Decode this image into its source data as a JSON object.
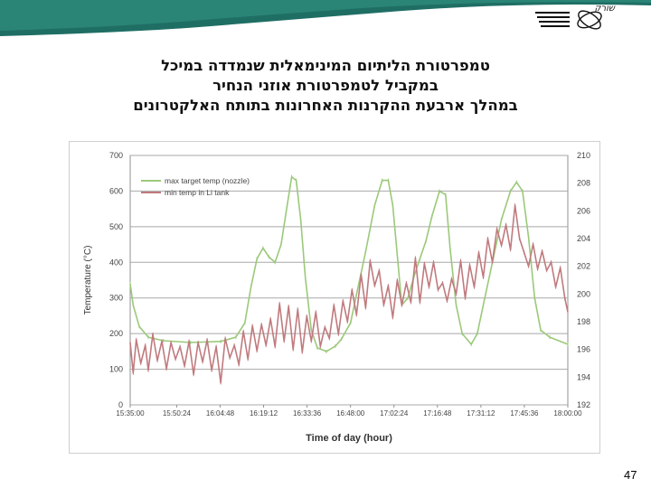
{
  "header": {
    "logo_text": "שורק",
    "title_lines": [
      "טמפרטורת הליתיום המינימאלית שנמדדה במיכל",
      "במקביל לטמפרטורת אוזני הנחיר",
      "במהלך ארבעת ההקרנות האחרונות בתותח האלקטרונים"
    ]
  },
  "colors": {
    "teal_band": "#1f6e64",
    "green_series": "#9bc97a",
    "red_series": "#c07a7e",
    "grid": "#a8a8a8"
  },
  "footer": {
    "page_number": "47"
  },
  "chart_data": {
    "type": "line",
    "xlabel": "Time of day (hour)",
    "ylabel": "Temperature (°C)",
    "x_tick_labels": [
      "15:35:00",
      "15:50:24",
      "16:04:48",
      "16:19:12",
      "16:33:36",
      "16:48:00",
      "17:02:24",
      "17:16:48",
      "17:31:12",
      "17:45:36",
      "18:00:00"
    ],
    "xlim": [
      "15:35:00",
      "18:00:00"
    ],
    "ylim_left": [
      0,
      700
    ],
    "ylim_right": [
      192,
      210
    ],
    "left_ticks": [
      0,
      100,
      200,
      300,
      400,
      500,
      600,
      700
    ],
    "right_ticks": [
      192,
      194,
      196,
      198,
      200,
      202,
      204,
      206,
      208,
      210
    ],
    "grid": "horizontal",
    "legend_position": "top-left",
    "series": [
      {
        "name": "max target temp (nozzle)",
        "axis": "left",
        "color": "#9bc97a",
        "points": [
          [
            "15:35:00",
            340
          ],
          [
            "15:36:00",
            280
          ],
          [
            "15:38:00",
            220
          ],
          [
            "15:41:00",
            190
          ],
          [
            "15:46:00",
            180
          ],
          [
            "15:55:00",
            175
          ],
          [
            "16:05:00",
            178
          ],
          [
            "16:10:00",
            190
          ],
          [
            "16:13:00",
            230
          ],
          [
            "16:15:00",
            330
          ],
          [
            "16:17:00",
            410
          ],
          [
            "16:19:00",
            440
          ],
          [
            "16:21:00",
            415
          ],
          [
            "16:23:00",
            400
          ],
          [
            "16:25:00",
            450
          ],
          [
            "16:27:00",
            560
          ],
          [
            "16:28:30",
            640
          ],
          [
            "16:30:00",
            630
          ],
          [
            "16:31:30",
            520
          ],
          [
            "16:33:00",
            360
          ],
          [
            "16:35:00",
            210
          ],
          [
            "16:37:00",
            160
          ],
          [
            "16:40:00",
            150
          ],
          [
            "16:43:00",
            165
          ],
          [
            "16:45:00",
            185
          ],
          [
            "16:48:00",
            230
          ],
          [
            "16:50:00",
            310
          ],
          [
            "16:53:00",
            430
          ],
          [
            "16:56:00",
            560
          ],
          [
            "16:58:30",
            630
          ],
          [
            "17:00:30",
            630
          ],
          [
            "17:02:00",
            560
          ],
          [
            "17:03:30",
            420
          ],
          [
            "17:05:00",
            280
          ],
          [
            "17:07:00",
            300
          ],
          [
            "17:09:00",
            360
          ],
          [
            "17:11:00",
            410
          ],
          [
            "17:13:00",
            460
          ],
          [
            "17:15:00",
            530
          ],
          [
            "17:17:30",
            600
          ],
          [
            "17:19:30",
            590
          ],
          [
            "17:21:00",
            440
          ],
          [
            "17:23:00",
            280
          ],
          [
            "17:25:00",
            200
          ],
          [
            "17:28:00",
            170
          ],
          [
            "17:30:00",
            200
          ],
          [
            "17:32:00",
            280
          ],
          [
            "17:35:00",
            400
          ],
          [
            "17:38:00",
            520
          ],
          [
            "17:41:00",
            600
          ],
          [
            "17:43:00",
            625
          ],
          [
            "17:45:00",
            600
          ],
          [
            "17:47:00",
            470
          ],
          [
            "17:49:00",
            300
          ],
          [
            "17:51:00",
            210
          ],
          [
            "17:54:00",
            190
          ],
          [
            "18:00:00",
            170
          ]
        ]
      },
      {
        "name": "min temp in Li tank",
        "axis": "right",
        "color": "#c07a7e",
        "points": [
          [
            "15:35:00",
            196.5
          ],
          [
            "15:36:00",
            194.3
          ],
          [
            "15:37:00",
            196.7
          ],
          [
            "15:38:30",
            195.0
          ],
          [
            "15:40:00",
            196.3
          ],
          [
            "15:41:00",
            194.5
          ],
          [
            "15:42:30",
            197.1
          ],
          [
            "15:44:00",
            195.2
          ],
          [
            "15:45:30",
            196.6
          ],
          [
            "15:47:00",
            194.6
          ],
          [
            "15:48:30",
            196.5
          ],
          [
            "15:50:00",
            195.3
          ],
          [
            "15:51:30",
            196.2
          ],
          [
            "15:53:00",
            194.8
          ],
          [
            "15:54:30",
            196.6
          ],
          [
            "15:56:00",
            194.2
          ],
          [
            "15:57:30",
            196.5
          ],
          [
            "15:59:00",
            195.1
          ],
          [
            "16:00:30",
            196.7
          ],
          [
            "16:02:00",
            194.5
          ],
          [
            "16:03:30",
            196.2
          ],
          [
            "16:05:00",
            193.6
          ],
          [
            "16:06:30",
            196.8
          ],
          [
            "16:08:00",
            195.4
          ],
          [
            "16:09:30",
            196.3
          ],
          [
            "16:11:00",
            194.9
          ],
          [
            "16:12:30",
            197.3
          ],
          [
            "16:14:00",
            195.3
          ],
          [
            "16:15:30",
            197.7
          ],
          [
            "16:17:00",
            195.9
          ],
          [
            "16:18:30",
            197.8
          ],
          [
            "16:20:00",
            196.3
          ],
          [
            "16:21:30",
            198.2
          ],
          [
            "16:23:00",
            196.2
          ],
          [
            "16:24:30",
            199.3
          ],
          [
            "16:26:00",
            196.6
          ],
          [
            "16:27:30",
            199.1
          ],
          [
            "16:29:00",
            196.0
          ],
          [
            "16:30:30",
            198.9
          ],
          [
            "16:32:00",
            195.8
          ],
          [
            "16:33:30",
            198.4
          ],
          [
            "16:35:00",
            196.6
          ],
          [
            "16:36:30",
            198.7
          ],
          [
            "16:38:00",
            196.2
          ],
          [
            "16:39:30",
            197.6
          ],
          [
            "16:41:00",
            196.8
          ],
          [
            "16:42:30",
            199.2
          ],
          [
            "16:44:00",
            197.1
          ],
          [
            "16:45:30",
            199.5
          ],
          [
            "16:47:00",
            198.0
          ],
          [
            "16:48:30",
            200.3
          ],
          [
            "16:50:00",
            198.5
          ],
          [
            "16:51:30",
            201.4
          ],
          [
            "16:53:00",
            199.0
          ],
          [
            "16:54:30",
            202.4
          ],
          [
            "16:56:00",
            200.6
          ],
          [
            "16:57:30",
            201.7
          ],
          [
            "16:59:00",
            199.2
          ],
          [
            "17:00:30",
            200.6
          ],
          [
            "17:02:00",
            198.3
          ],
          [
            "17:03:30",
            201.0
          ],
          [
            "17:05:00",
            199.2
          ],
          [
            "17:06:30",
            200.8
          ],
          [
            "17:08:00",
            199.4
          ],
          [
            "17:09:30",
            202.6
          ],
          [
            "17:11:00",
            199.4
          ],
          [
            "17:12:30",
            202.2
          ],
          [
            "17:14:00",
            200.5
          ],
          [
            "17:15:30",
            202.3
          ],
          [
            "17:17:00",
            200.3
          ],
          [
            "17:18:30",
            200.8
          ],
          [
            "17:20:00",
            199.5
          ],
          [
            "17:21:30",
            201.1
          ],
          [
            "17:23:00",
            200.0
          ],
          [
            "17:24:30",
            202.4
          ],
          [
            "17:26:00",
            199.7
          ],
          [
            "17:27:30",
            202.1
          ],
          [
            "17:29:00",
            200.5
          ],
          [
            "17:30:30",
            203.0
          ],
          [
            "17:32:00",
            201.2
          ],
          [
            "17:33:30",
            204.0
          ],
          [
            "17:35:00",
            202.3
          ],
          [
            "17:36:30",
            204.7
          ],
          [
            "17:38:00",
            203.5
          ],
          [
            "17:39:30",
            205.0
          ],
          [
            "17:41:00",
            203.2
          ],
          [
            "17:42:30",
            206.4
          ],
          [
            "17:44:00",
            204.0
          ],
          [
            "17:45:30",
            203.0
          ],
          [
            "17:47:00",
            202.0
          ],
          [
            "17:48:30",
            203.6
          ],
          [
            "17:50:00",
            201.8
          ],
          [
            "17:51:30",
            203.1
          ],
          [
            "17:53:00",
            201.7
          ],
          [
            "17:54:30",
            202.3
          ],
          [
            "17:56:00",
            200.5
          ],
          [
            "17:57:30",
            201.9
          ],
          [
            "17:59:00",
            199.7
          ],
          [
            "18:00:00",
            198.7
          ]
        ]
      }
    ]
  }
}
